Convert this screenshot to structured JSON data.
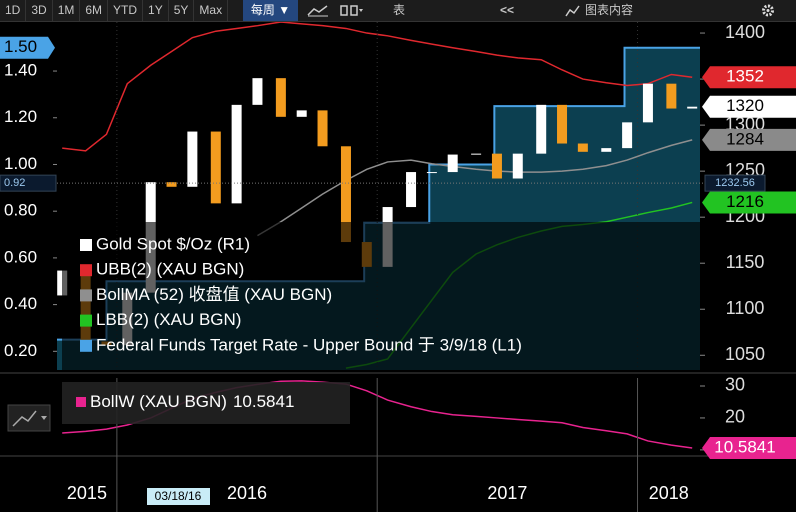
{
  "toolbar": {
    "ranges": [
      "1D",
      "3D",
      "1M",
      "6M",
      "YTD",
      "1Y",
      "5Y",
      "Max"
    ],
    "period": "每周 ▼",
    "table": "表",
    "back": "<<",
    "chart_content": "图表内容"
  },
  "crosshair": {
    "date": "03/18/16",
    "y_value": 0.92,
    "y2_value": 1232.56
  },
  "chart_data": [
    {
      "type": "candlestick",
      "x": [
        2015.79,
        2015.88,
        2015.96,
        2016.04,
        2016.13,
        2016.21,
        2016.29,
        2016.38,
        2016.46,
        2016.54,
        2016.63,
        2016.71,
        2016.79,
        2016.88,
        2016.96,
        2017.04,
        2017.13,
        2017.21,
        2017.29,
        2017.38,
        2017.46,
        2017.54,
        2017.63,
        2017.71,
        2017.79,
        2017.88,
        2017.96,
        2018.04,
        2018.13,
        2018.21
      ],
      "xlim": [
        2015.77,
        2018.24
      ],
      "ylim": [
        0.12,
        1.61
      ],
      "yticks": [
        {
          "value": 0.2,
          "label": "0.20"
        },
        {
          "value": 0.4,
          "label": "0.40"
        },
        {
          "value": 0.6,
          "label": "0.60"
        },
        {
          "value": 0.8,
          "label": "0.80"
        },
        {
          "value": 1.0,
          "label": "1.00"
        },
        {
          "value": 1.2,
          "label": "1.20"
        },
        {
          "value": 1.4,
          "label": "1.40"
        }
      ],
      "y2lim": [
        1034,
        1412
      ],
      "y2ticks": [
        1050,
        1100,
        1150,
        1200,
        1250,
        1300,
        1350,
        1400
      ],
      "series": [
        {
          "name": "Gold Spot $/Oz (R1)",
          "axis": "y2",
          "up_color": "#ffffff",
          "down_color": "#f39c1f",
          "open": [
            1115,
            1142,
            1065,
            1061,
            1118,
            1238,
            1233,
            1293,
            1215,
            1322,
            1351,
            1309,
            1316,
            1277,
            1173,
            1146,
            1211,
            1249,
            1249,
            1268,
            1269,
            1242,
            1269,
            1322,
            1280,
            1271,
            1275,
            1303,
            1345,
            1318
          ],
          "close": [
            1142,
            1065,
            1061,
            1118,
            1238,
            1233,
            1293,
            1215,
            1322,
            1351,
            1309,
            1316,
            1277,
            1173,
            1146,
            1211,
            1249,
            1249,
            1268,
            1269,
            1242,
            1269,
            1322,
            1280,
            1271,
            1275,
            1303,
            1345,
            1318,
            1320
          ]
        },
        {
          "name": "UBB(2) (XAU BGN)",
          "axis": "y2",
          "color": "#e0282e",
          "values": [
            1275,
            1272,
            1290,
            1345,
            1365,
            1380,
            1395,
            1402,
            1405,
            1408,
            1412,
            1410,
            1408,
            1405,
            1400,
            1397,
            1392,
            1388,
            1384,
            1380,
            1376,
            1373,
            1371,
            1360,
            1350,
            1346,
            1343,
            1345,
            1355,
            1352
          ]
        },
        {
          "name": "BollMA (52) 收盘值 (XAU BGN)",
          "axis": "y2",
          "color": "#8f8f8f",
          "values": [
            null,
            null,
            null,
            null,
            null,
            null,
            null,
            null,
            null,
            1180,
            1195,
            1210,
            1225,
            1240,
            1252,
            1260,
            1262,
            1258,
            1255,
            1252,
            1250,
            1249,
            1249,
            1250,
            1252,
            1256,
            1262,
            1270,
            1278,
            1284
          ]
        },
        {
          "name": "LBB(2) (XAU BGN)",
          "axis": "y2",
          "color": "#22c322",
          "values": [
            null,
            null,
            null,
            null,
            null,
            null,
            null,
            null,
            null,
            null,
            null,
            null,
            null,
            1036,
            1040,
            1046,
            1080,
            1110,
            1140,
            1160,
            1170,
            1178,
            1185,
            1190,
            1192,
            1195,
            1200,
            1205,
            1210,
            1216
          ]
        },
        {
          "name": "Federal Funds Target Rate - Upper Bound 于 3/9/18 (L1)",
          "color": "#4aa3e6",
          "x": [
            2015.77,
            2015.96,
            2016.95,
            2017.2,
            2017.45,
            2017.95
          ],
          "values": [
            0.25,
            0.5,
            0.75,
            1.0,
            1.25,
            1.5
          ],
          "value_labels": [
            null,
            null,
            null,
            null,
            null,
            "1.50"
          ]
        }
      ]
    },
    {
      "type": "line",
      "x": [
        2015.79,
        2015.88,
        2015.96,
        2016.04,
        2016.13,
        2016.21,
        2016.29,
        2016.38,
        2016.46,
        2016.54,
        2016.63,
        2016.71,
        2016.79,
        2016.88,
        2016.96,
        2017.04,
        2017.13,
        2017.21,
        2017.29,
        2017.38,
        2017.46,
        2017.54,
        2017.63,
        2017.71,
        2017.79,
        2017.88,
        2017.96,
        2018.04,
        2018.13,
        2018.21
      ],
      "xlim": [
        2015.77,
        2018.24
      ],
      "xticks": [
        {
          "value": 2015,
          "label": "2015"
        },
        {
          "value": 2016,
          "label": "2016"
        },
        {
          "value": 2017,
          "label": "2017"
        },
        {
          "value": 2018,
          "label": "2018"
        }
      ],
      "ylim": [
        8.4,
        32.5
      ],
      "yticks": [
        10,
        20,
        30
      ],
      "series": [
        {
          "name": "BollW (XAU BGN)",
          "color": "#e8238f",
          "values": [
            15.3,
            15.8,
            16.5,
            17.8,
            20,
            23,
            26,
            28,
            29.5,
            30.5,
            31.5,
            31.6,
            31.2,
            30.6,
            28.5,
            25.6,
            23.5,
            22,
            21,
            20.5,
            20,
            19.5,
            19,
            18.5,
            17,
            16,
            15,
            12.8,
            11.5,
            10.5841
          ]
        }
      ]
    }
  ]
}
